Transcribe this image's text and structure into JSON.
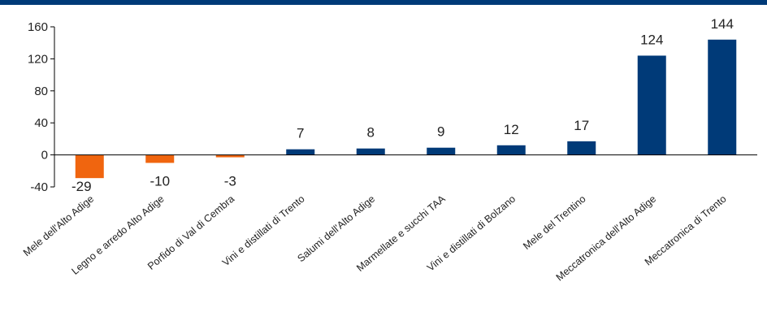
{
  "colors": {
    "band": "#003a78",
    "positive": "#003a78",
    "negative": "#f0650f",
    "axis": "#000000"
  },
  "chart_data": {
    "type": "bar",
    "title": "",
    "xlabel": "",
    "ylabel": "",
    "ylim": [
      -40,
      160
    ],
    "yticks": [
      160,
      120,
      80,
      40,
      0,
      -40
    ],
    "grid": false,
    "categories": [
      "Mele dell'Alto Adige",
      "Legno e arredo Alto Adige",
      "Porfido di Val di Cembra",
      "Vini e distillati di Trento",
      "Salumi dell'Alto Adige",
      "Marmellate e succhi TAA",
      "Vini e distillati di Bolzano",
      "Mele del Trentino",
      "Meccatronica dell'Alto Adige",
      "Meccatronica di Trento"
    ],
    "values": [
      -29,
      -10,
      -3,
      7,
      8,
      9,
      12,
      17,
      124,
      144
    ],
    "data_labels": [
      "-29",
      "-10",
      "-3",
      "7",
      "8",
      "9",
      "12",
      "17",
      "124",
      "144"
    ]
  }
}
